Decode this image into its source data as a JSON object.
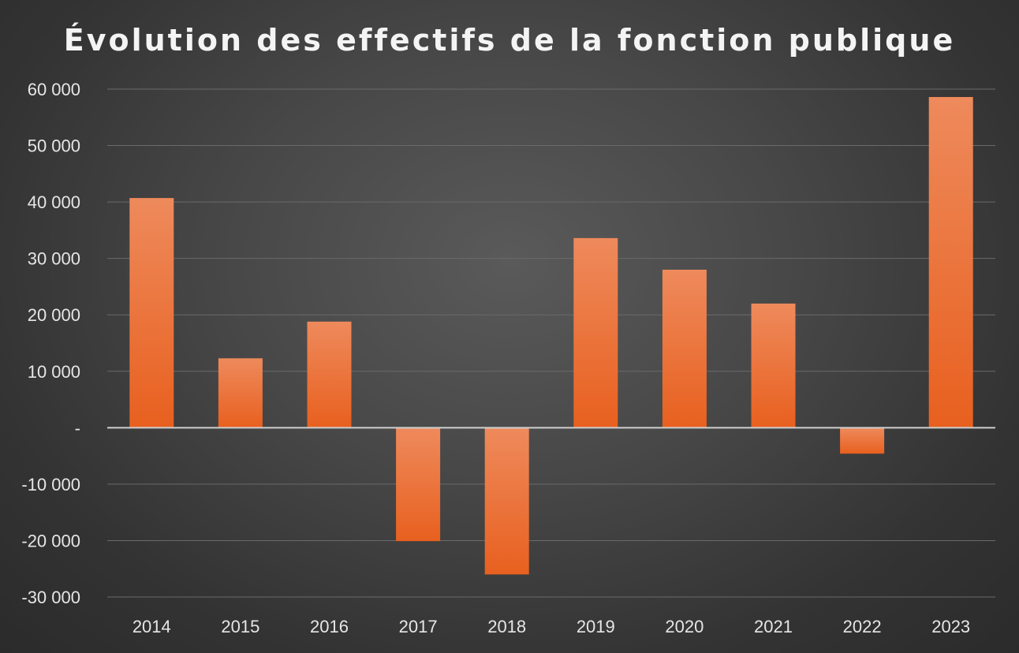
{
  "chart_data": {
    "type": "bar",
    "title": "Évolution des effectifs de la fonction publique",
    "xlabel": "",
    "ylabel": "",
    "categories": [
      "2014",
      "2015",
      "2016",
      "2017",
      "2018",
      "2019",
      "2020",
      "2021",
      "2022",
      "2023"
    ],
    "values": [
      40700,
      12300,
      18800,
      -20100,
      -26000,
      33600,
      28000,
      22000,
      -4600,
      58600
    ],
    "ylim": [
      -30000,
      60000
    ],
    "yticks": [
      60000,
      50000,
      40000,
      30000,
      20000,
      10000,
      0,
      -10000,
      -20000,
      -30000
    ],
    "ytick_labels": [
      "60 000",
      "50 000",
      "40 000",
      "30 000",
      "20 000",
      "10 000",
      "-",
      "-10 000",
      "-20 000",
      "-30 000"
    ],
    "grid": true,
    "legend": "none",
    "colors": {
      "bar_top": "#ee8a5c",
      "bar_bottom": "#e8601f",
      "grid": "#6a6a6a",
      "zero_line": "#cfcfcf",
      "text": "#e6e6e6"
    }
  }
}
